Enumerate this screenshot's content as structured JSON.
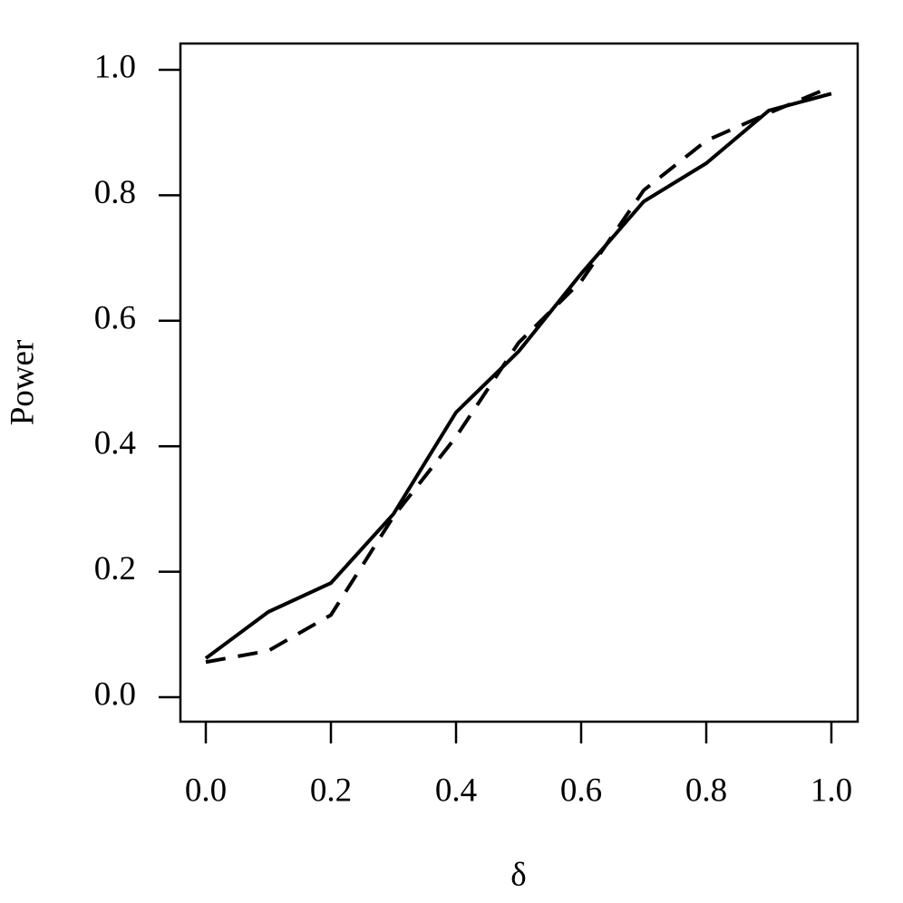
{
  "chart_data": {
    "type": "line",
    "x": [
      0,
      0.1,
      0.2,
      0.3,
      0.4,
      0.5,
      0.6,
      0.7,
      0.8,
      0.9,
      1
    ],
    "series": [
      {
        "color": "#000000",
        "dash": "solid",
        "values": [
          0.062,
          0.136,
          0.182,
          0.292,
          0.454,
          0.551,
          0.675,
          0.79,
          0.851,
          0.935,
          0.962
        ]
      },
      {
        "color": "#000000",
        "dash": "dashed",
        "values": [
          0.056,
          0.074,
          0.131,
          0.288,
          0.415,
          0.565,
          0.663,
          0.808,
          0.887,
          0.931,
          0.973
        ]
      }
    ],
    "x_label": "δ",
    "y_label": "Power",
    "xlim": [
      0,
      1
    ],
    "ylim": [
      0,
      1
    ],
    "xticks": [
      {
        "value": 0,
        "label": "0.0"
      },
      0.2,
      0.4,
      0.6,
      0.8,
      {
        "value": 1,
        "label": "1.0"
      }
    ],
    "yticks": [
      {
        "value": 0,
        "label": "0.0"
      },
      0.2,
      0.4,
      0.6,
      0.8,
      {
        "value": 1,
        "label": "1.0"
      }
    ]
  }
}
